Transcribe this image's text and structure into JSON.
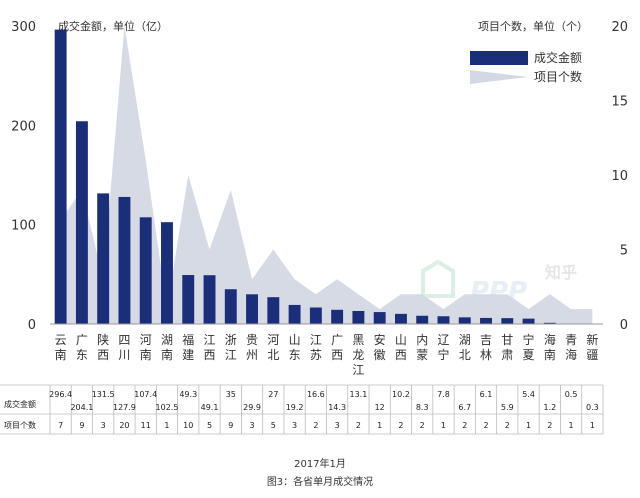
{
  "chart_data": {
    "type": "bar",
    "ylabel_left": "成交金额，单位（亿）",
    "ylabel_right": "项目个数，单位（个）",
    "ylim_left": [
      0,
      300
    ],
    "yticks_left": [
      "0",
      "100",
      "200",
      "300"
    ],
    "ylim_right": [
      0,
      20
    ],
    "yticks_right": [
      "0",
      "5",
      "10",
      "15",
      "20"
    ],
    "legend_position": "top-right",
    "categories": [
      "云南",
      "广东",
      "陕西",
      "四川",
      "河南",
      "湖南",
      "福建",
      "江西",
      "浙江",
      "贵州",
      "河北",
      "山东",
      "江苏",
      "广西",
      "黑龙江",
      "安徽",
      "山西",
      "内蒙",
      "辽宁",
      "湖北",
      "吉林",
      "甘肃",
      "宁夏",
      "海南",
      "青海",
      "新疆"
    ],
    "series": [
      {
        "name": "成交金额",
        "type": "bar",
        "axis": "left",
        "color": "#1b2e7a",
        "values": [
          296.4,
          204.1,
          131.5,
          127.9,
          107.4,
          102.5,
          49.3,
          49.1,
          35,
          29.9,
          27,
          19.2,
          16.6,
          14.3,
          13.1,
          12,
          10.2,
          8.3,
          7.8,
          6.7,
          6.1,
          5.9,
          5.4,
          1.2,
          0.5,
          0.3
        ]
      },
      {
        "name": "项目个数",
        "type": "area",
        "axis": "right",
        "color": "#d3d8e4",
        "values": [
          7,
          9,
          3,
          20,
          11,
          1,
          10,
          5,
          9,
          3,
          5,
          3,
          2,
          3,
          2,
          1,
          2,
          2,
          1,
          2,
          2,
          2,
          1,
          2,
          1,
          1
        ]
      }
    ],
    "table_row_labels": [
      "成交金额",
      "项目个数"
    ],
    "watermark": "知乎 PPP"
  },
  "caption": {
    "date": "2017年1月",
    "title": "图3：各省单月成交情况"
  }
}
